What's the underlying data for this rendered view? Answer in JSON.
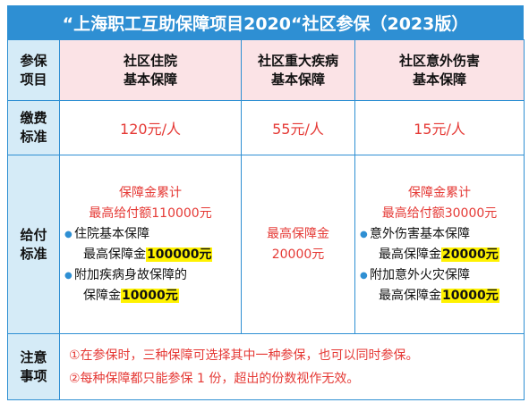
{
  "title": "“上海职工互助保障项目2020“社区参保（2023版）",
  "header": {
    "corner": "参保\n项目",
    "col1": "社区住院\n基本保障",
    "col2": "社区重大疾病\n基本保障",
    "col3": "社区意外伤害\n基本保障"
  },
  "fee": {
    "label": "缴费\n标准",
    "col1": "120元/人",
    "col2": "55元/人",
    "col3": "15元/人"
  },
  "benefit": {
    "label": "给付\n标准",
    "col1": {
      "heading1": "保障金累计",
      "heading2": "最高给付额110000元",
      "item1_line1": "住院基本保障",
      "item1_line2_prefix": "最高保障金",
      "item1_amount": "100000元",
      "item2_line1": "附加疾病身故保障的",
      "item2_line2_prefix": "保障金",
      "item2_amount": "10000元"
    },
    "col2": {
      "line1": "最高保障金",
      "line2": "20000元"
    },
    "col3": {
      "heading1": "保障金累计",
      "heading2": "最高给付额30000元",
      "item1_line1": "意外伤害基本保障",
      "item1_line2_prefix": "最高保障金",
      "item1_amount": "20000元",
      "item2_line1": "附加意外火灾保障",
      "item2_line2_prefix": "最高保障金",
      "item2_amount": "10000元"
    }
  },
  "notes": {
    "label": "注意\n事项",
    "note1": "①在参保时，三种保障可选择其中一种参保，也可以同时参保。",
    "note2": "②每种保障都只能参保 1 份，超出的份数视作无效。"
  },
  "colors": {
    "border": "#2e8fd3",
    "title_bg": "#2e8fd3",
    "header_bg": "#fbe3e6",
    "rowhead_bg": "#d5ebf7",
    "accent_red": "#e53935",
    "highlight": "#fff200"
  },
  "icons": {
    "bullet": "bullet-dot-icon"
  }
}
